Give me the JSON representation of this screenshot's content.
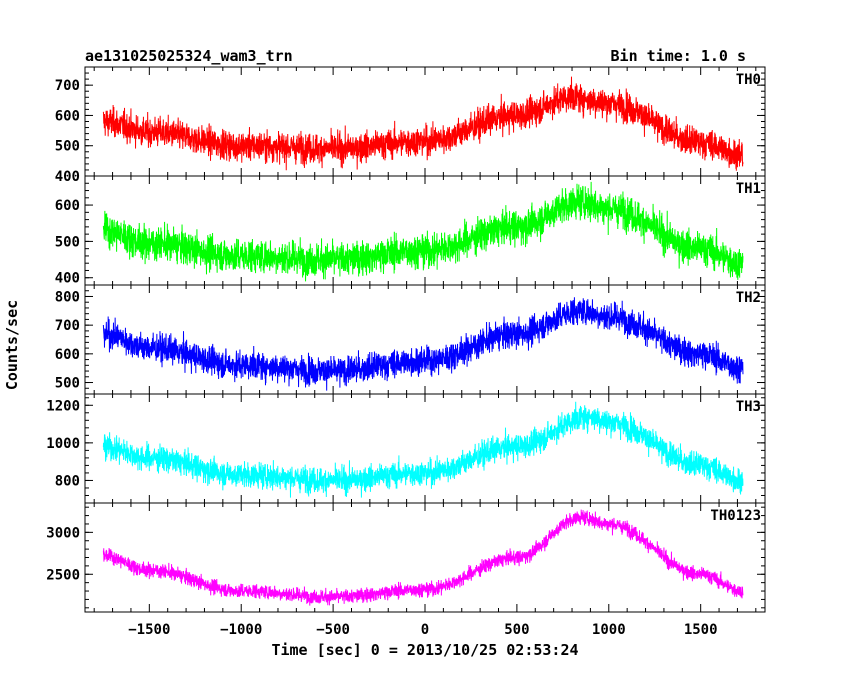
{
  "header": {
    "title": "ae131025025324_wam3_trn",
    "bin_time": "Bin time: 1.0 s"
  },
  "chart_data": {
    "type": "line",
    "xlabel": "Time [sec] 0 = 2013/10/25 02:53:24",
    "ylabel": "Counts/sec",
    "xlim": [
      -1850,
      1850
    ],
    "data_xrange": [
      -1750,
      1730
    ],
    "x_ticks": [
      -1500,
      -1000,
      -500,
      0,
      500,
      1000,
      1500
    ],
    "grid": false,
    "panels": [
      {
        "name": "TH0",
        "color": "#ff0000",
        "ylim": [
          400,
          760
        ],
        "y_ticks": [
          400,
          500,
          600,
          700
        ],
        "x": [
          -1750,
          -1500,
          -1000,
          -500,
          0,
          500,
          800,
          1000,
          1500,
          1730
        ],
        "values": [
          580,
          545,
          500,
          490,
          515,
          600,
          660,
          640,
          510,
          470
        ],
        "noise": 40
      },
      {
        "name": "TH1",
        "color": "#00ff00",
        "ylim": [
          380,
          680
        ],
        "y_ticks": [
          400,
          500,
          600
        ],
        "x": [
          -1750,
          -1500,
          -1000,
          -500,
          0,
          500,
          850,
          1000,
          1500,
          1730
        ],
        "values": [
          530,
          495,
          460,
          450,
          475,
          540,
          610,
          590,
          480,
          440
        ],
        "noise": 38
      },
      {
        "name": "TH2",
        "color": "#0000ff",
        "ylim": [
          460,
          840
        ],
        "y_ticks": [
          500,
          600,
          700,
          800
        ],
        "x": [
          -1750,
          -1500,
          -1000,
          -500,
          0,
          500,
          850,
          1000,
          1500,
          1730
        ],
        "values": [
          670,
          620,
          560,
          540,
          575,
          670,
          750,
          730,
          600,
          550
        ],
        "noise": 40
      },
      {
        "name": "TH3",
        "color": "#00ffff",
        "ylim": [
          680,
          1260
        ],
        "y_ticks": [
          800,
          1000,
          1200
        ],
        "x": [
          -1750,
          -1500,
          -1000,
          -500,
          0,
          500,
          900,
          1000,
          1500,
          1730
        ],
        "values": [
          980,
          920,
          830,
          800,
          840,
          980,
          1140,
          1110,
          880,
          800
        ],
        "noise": 55
      },
      {
        "name": "TH0123",
        "color": "#ff00ff",
        "ylim": [
          2050,
          3350
        ],
        "y_ticks": [
          2500,
          3000
        ],
        "x": [
          -1750,
          -1500,
          -1000,
          -500,
          0,
          500,
          850,
          1000,
          1500,
          1730
        ],
        "values": [
          2720,
          2550,
          2300,
          2230,
          2320,
          2700,
          3180,
          3100,
          2500,
          2300
        ],
        "noise": 70
      }
    ]
  }
}
